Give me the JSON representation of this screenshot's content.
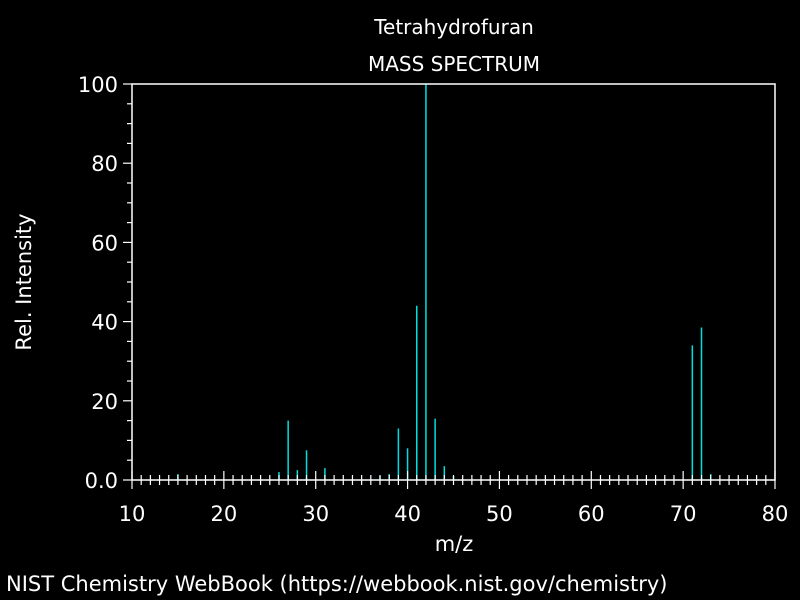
{
  "chart_data": {
    "type": "bar",
    "subtype": "mass-spectrum-stick",
    "title": "Tetrahydrofuran",
    "subtitle": "MASS SPECTRUM",
    "xlabel": "m/z",
    "ylabel": "Rel. Intensity",
    "xlim": [
      10,
      80
    ],
    "ylim": [
      0,
      100
    ],
    "xticks": [
      10,
      20,
      30,
      40,
      50,
      60,
      70,
      80
    ],
    "xtick_labels": [
      "10",
      "20",
      "30",
      "40",
      "50",
      "60",
      "70",
      "80"
    ],
    "yticks": [
      0,
      20,
      40,
      60,
      80,
      100
    ],
    "ytick_labels": [
      "0.0",
      "20",
      "40",
      "60",
      "80",
      "100"
    ],
    "grid": false,
    "legend": null,
    "series": [
      {
        "color": "#00e0e0",
        "points": [
          {
            "mz": 15,
            "intensity": 1.5
          },
          {
            "mz": 26,
            "intensity": 2
          },
          {
            "mz": 27,
            "intensity": 15
          },
          {
            "mz": 28,
            "intensity": 2.5
          },
          {
            "mz": 29,
            "intensity": 7.5
          },
          {
            "mz": 31,
            "intensity": 3
          },
          {
            "mz": 37,
            "intensity": 1
          },
          {
            "mz": 38,
            "intensity": 1.5
          },
          {
            "mz": 39,
            "intensity": 13
          },
          {
            "mz": 40,
            "intensity": 8
          },
          {
            "mz": 41,
            "intensity": 44
          },
          {
            "mz": 42,
            "intensity": 100
          },
          {
            "mz": 43,
            "intensity": 15.5
          },
          {
            "mz": 44,
            "intensity": 3.5
          },
          {
            "mz": 45,
            "intensity": 1
          },
          {
            "mz": 71,
            "intensity": 34
          },
          {
            "mz": 72,
            "intensity": 38.5
          },
          {
            "mz": 73,
            "intensity": 1.5
          }
        ]
      }
    ]
  },
  "footer": {
    "credit": "NIST Chemistry WebBook (https://webbook.nist.gov/chemistry)"
  },
  "colors": {
    "background": "#000000",
    "axis": "#ffffff",
    "text": "#ffffff",
    "peaks": "#00e0e0"
  }
}
